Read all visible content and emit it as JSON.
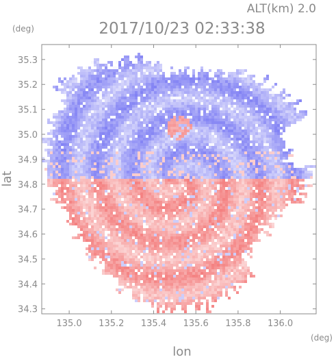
{
  "chart_data": {
    "type": "heatmap",
    "title": "2017/10/23 02:33:38",
    "subtitle": "ALT(km)  2.0",
    "xlabel": "lon",
    "ylabel": "lat",
    "x_unit": "(deg)",
    "y_unit": "(deg)",
    "xlim": [
      134.87,
      136.17
    ],
    "ylim": [
      34.28,
      35.36
    ],
    "x_ticks": [
      135.0,
      135.2,
      135.4,
      135.6,
      135.8,
      136.0
    ],
    "x_tick_labels": [
      "135.0",
      "135.2",
      "135.4",
      "135.6",
      "135.8",
      "136.0"
    ],
    "y_ticks": [
      34.3,
      34.4,
      34.5,
      34.6,
      34.7,
      34.8,
      34.9,
      35.0,
      35.1,
      35.2,
      35.3
    ],
    "y_tick_labels": [
      "34.3",
      "34.4",
      "34.5",
      "34.6",
      "34.7",
      "34.8",
      "34.9",
      "35.0",
      "35.1",
      "35.2",
      "35.3"
    ],
    "radar_center": {
      "lon": 135.52,
      "lat": 34.82
    },
    "colors": {
      "negative": "#6f6ff2",
      "neutral": "#ffffff",
      "positive": "#f26f6f",
      "axis": "#8a8a8a"
    },
    "field_description_codes": {
      "north_sign": "negative",
      "south_sign": "positive"
    }
  }
}
